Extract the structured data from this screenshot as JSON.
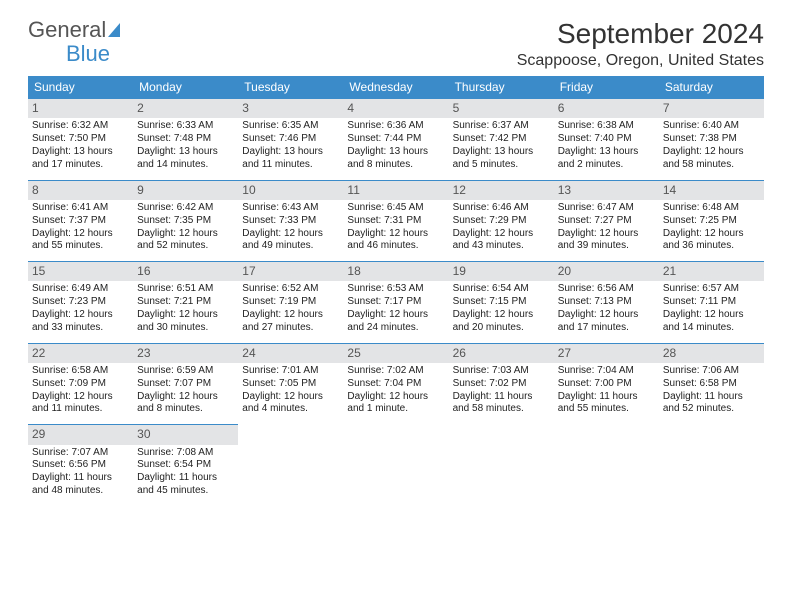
{
  "logo": {
    "text1": "General",
    "text2": "Blue"
  },
  "title": "September 2024",
  "subtitle": "Scappoose, Oregon, United States",
  "colors": {
    "header_bg": "#3b8bc9",
    "header_text": "#ffffff",
    "daynum_bg": "#e3e4e6",
    "row_border": "#3b8bc9",
    "text": "#222222"
  },
  "dayHeaders": [
    "Sunday",
    "Monday",
    "Tuesday",
    "Wednesday",
    "Thursday",
    "Friday",
    "Saturday"
  ],
  "weeks": [
    [
      {
        "n": "1",
        "sr": "6:32 AM",
        "ss": "7:50 PM",
        "dl": "13 hours and 17 minutes."
      },
      {
        "n": "2",
        "sr": "6:33 AM",
        "ss": "7:48 PM",
        "dl": "13 hours and 14 minutes."
      },
      {
        "n": "3",
        "sr": "6:35 AM",
        "ss": "7:46 PM",
        "dl": "13 hours and 11 minutes."
      },
      {
        "n": "4",
        "sr": "6:36 AM",
        "ss": "7:44 PM",
        "dl": "13 hours and 8 minutes."
      },
      {
        "n": "5",
        "sr": "6:37 AM",
        "ss": "7:42 PM",
        "dl": "13 hours and 5 minutes."
      },
      {
        "n": "6",
        "sr": "6:38 AM",
        "ss": "7:40 PM",
        "dl": "13 hours and 2 minutes."
      },
      {
        "n": "7",
        "sr": "6:40 AM",
        "ss": "7:38 PM",
        "dl": "12 hours and 58 minutes."
      }
    ],
    [
      {
        "n": "8",
        "sr": "6:41 AM",
        "ss": "7:37 PM",
        "dl": "12 hours and 55 minutes."
      },
      {
        "n": "9",
        "sr": "6:42 AM",
        "ss": "7:35 PM",
        "dl": "12 hours and 52 minutes."
      },
      {
        "n": "10",
        "sr": "6:43 AM",
        "ss": "7:33 PM",
        "dl": "12 hours and 49 minutes."
      },
      {
        "n": "11",
        "sr": "6:45 AM",
        "ss": "7:31 PM",
        "dl": "12 hours and 46 minutes."
      },
      {
        "n": "12",
        "sr": "6:46 AM",
        "ss": "7:29 PM",
        "dl": "12 hours and 43 minutes."
      },
      {
        "n": "13",
        "sr": "6:47 AM",
        "ss": "7:27 PM",
        "dl": "12 hours and 39 minutes."
      },
      {
        "n": "14",
        "sr": "6:48 AM",
        "ss": "7:25 PM",
        "dl": "12 hours and 36 minutes."
      }
    ],
    [
      {
        "n": "15",
        "sr": "6:49 AM",
        "ss": "7:23 PM",
        "dl": "12 hours and 33 minutes."
      },
      {
        "n": "16",
        "sr": "6:51 AM",
        "ss": "7:21 PM",
        "dl": "12 hours and 30 minutes."
      },
      {
        "n": "17",
        "sr": "6:52 AM",
        "ss": "7:19 PM",
        "dl": "12 hours and 27 minutes."
      },
      {
        "n": "18",
        "sr": "6:53 AM",
        "ss": "7:17 PM",
        "dl": "12 hours and 24 minutes."
      },
      {
        "n": "19",
        "sr": "6:54 AM",
        "ss": "7:15 PM",
        "dl": "12 hours and 20 minutes."
      },
      {
        "n": "20",
        "sr": "6:56 AM",
        "ss": "7:13 PM",
        "dl": "12 hours and 17 minutes."
      },
      {
        "n": "21",
        "sr": "6:57 AM",
        "ss": "7:11 PM",
        "dl": "12 hours and 14 minutes."
      }
    ],
    [
      {
        "n": "22",
        "sr": "6:58 AM",
        "ss": "7:09 PM",
        "dl": "12 hours and 11 minutes."
      },
      {
        "n": "23",
        "sr": "6:59 AM",
        "ss": "7:07 PM",
        "dl": "12 hours and 8 minutes."
      },
      {
        "n": "24",
        "sr": "7:01 AM",
        "ss": "7:05 PM",
        "dl": "12 hours and 4 minutes."
      },
      {
        "n": "25",
        "sr": "7:02 AM",
        "ss": "7:04 PM",
        "dl": "12 hours and 1 minute."
      },
      {
        "n": "26",
        "sr": "7:03 AM",
        "ss": "7:02 PM",
        "dl": "11 hours and 58 minutes."
      },
      {
        "n": "27",
        "sr": "7:04 AM",
        "ss": "7:00 PM",
        "dl": "11 hours and 55 minutes."
      },
      {
        "n": "28",
        "sr": "7:06 AM",
        "ss": "6:58 PM",
        "dl": "11 hours and 52 minutes."
      }
    ],
    [
      {
        "n": "29",
        "sr": "7:07 AM",
        "ss": "6:56 PM",
        "dl": "11 hours and 48 minutes."
      },
      {
        "n": "30",
        "sr": "7:08 AM",
        "ss": "6:54 PM",
        "dl": "11 hours and 45 minutes."
      },
      null,
      null,
      null,
      null,
      null
    ]
  ],
  "labels": {
    "sunrise": "Sunrise:",
    "sunset": "Sunset:",
    "daylight": "Daylight:"
  }
}
